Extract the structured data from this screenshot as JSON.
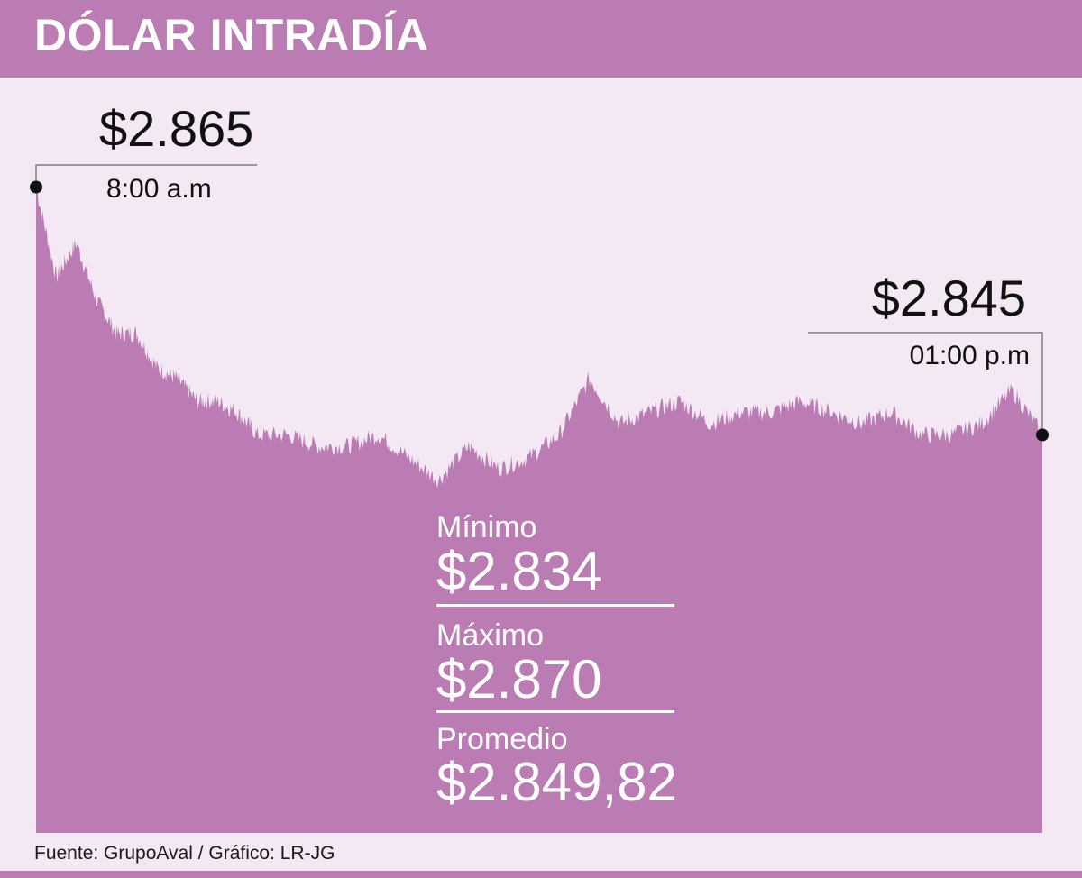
{
  "title": "DÓLAR INTRADÍA",
  "source": "Fuente:  GrupoAval / Gráfico: LR-JG",
  "colors": {
    "accent": "#bb7cb3",
    "background": "#f3e8f3",
    "text": "#111111",
    "stat_text": "#ffffff"
  },
  "stats": [
    {
      "label": "Mínimo",
      "value": "$2.834"
    },
    {
      "label": "Máximo",
      "value": "$2.870"
    },
    {
      "label": "Promedio",
      "value": "$2.849,82"
    }
  ],
  "chart_data": {
    "type": "area",
    "ylim": [
      2832,
      2872
    ],
    "grid": false,
    "annotations": [
      {
        "value": "$2.865",
        "time": "8:00 a.m"
      },
      {
        "value": "$2.845",
        "time": "01:00 p.m"
      }
    ],
    "x": [
      0,
      2,
      4,
      6,
      8,
      10,
      12,
      14,
      16,
      18,
      20,
      22,
      25,
      28,
      31,
      34,
      37,
      40,
      43,
      46,
      49,
      52,
      55,
      58,
      61,
      64,
      67,
      70,
      73,
      76,
      79,
      82,
      85,
      88,
      91,
      94,
      97,
      100
    ],
    "values": [
      2865,
      2857,
      2860,
      2855,
      2852,
      2852,
      2849,
      2848,
      2846,
      2846,
      2845,
      2843,
      2843,
      2842,
      2842,
      2843,
      2841,
      2839,
      2842,
      2840,
      2841,
      2843,
      2848,
      2844,
      2845,
      2846,
      2844,
      2845,
      2845,
      2846,
      2845,
      2844,
      2845,
      2843,
      2843,
      2844,
      2847,
      2843
    ]
  }
}
